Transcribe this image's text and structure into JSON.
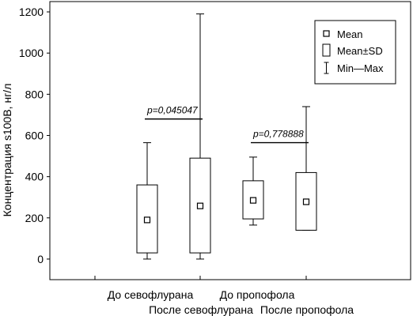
{
  "chart_data": {
    "type": "box",
    "ylabel": "Концентрация s100B, нг/л",
    "ylim": [
      -100,
      1250
    ],
    "yticks": [
      0,
      200,
      400,
      600,
      800,
      1000,
      1200
    ],
    "categories": [
      "До севофлурана",
      "После севофлурана",
      "До пропофола",
      "После пропофола"
    ],
    "series": [
      {
        "category": "До севофлурана",
        "mean": 190,
        "sd_low": 30,
        "sd_high": 360,
        "min": 0,
        "max": 565
      },
      {
        "category": "После севофлурана",
        "mean": 258,
        "sd_low": 30,
        "sd_high": 490,
        "min": 0,
        "max": 1190
      },
      {
        "category": "До пропофола",
        "mean": 285,
        "sd_low": 195,
        "sd_high": 380,
        "min": 165,
        "max": 495
      },
      {
        "category": "После пропофола",
        "mean": 278,
        "sd_low": 140,
        "sd_high": 420,
        "min": 140,
        "max": 740
      }
    ],
    "annotations": [
      {
        "text": "p=0,045047",
        "from": 0,
        "to": 1,
        "y": 680
      },
      {
        "text": "p=0,778888",
        "from": 2,
        "to": 3,
        "y": 565
      }
    ],
    "legend": {
      "position": "top-right",
      "items": [
        {
          "symbol": "mean-square",
          "label": "Mean"
        },
        {
          "symbol": "sd-box",
          "label": "Mean±SD"
        },
        {
          "symbol": "whisker",
          "label": "Min—Max"
        }
      ]
    },
    "grid": false
  }
}
